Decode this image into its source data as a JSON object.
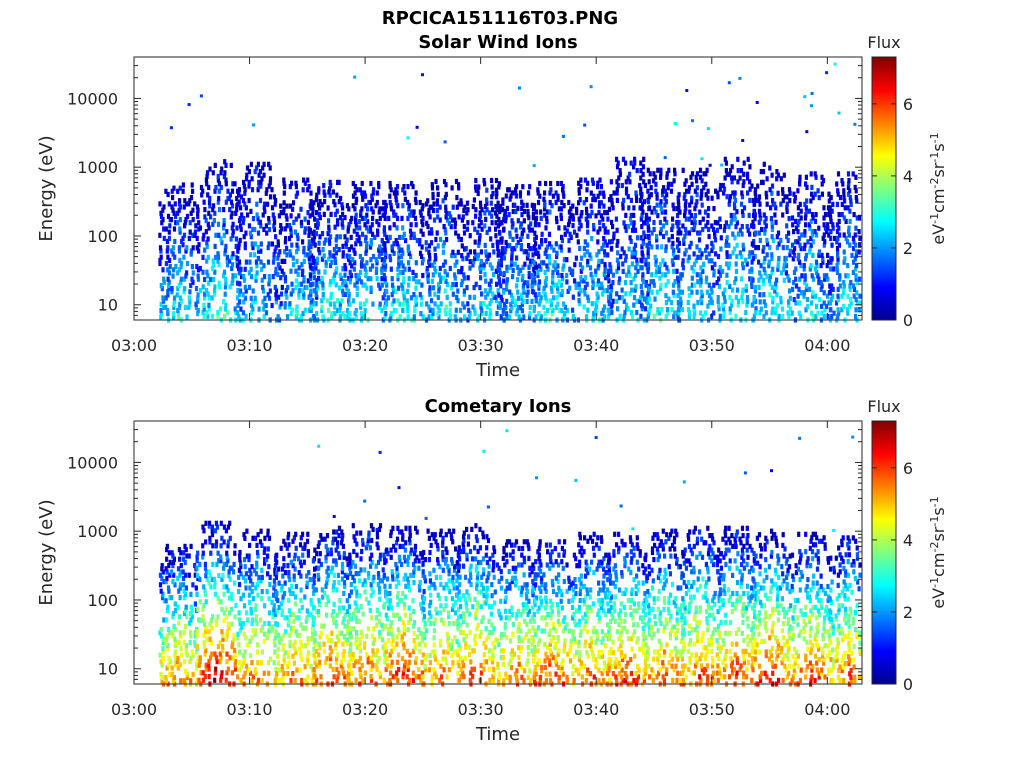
{
  "figure_title": "RPCICA151116T03.PNG",
  "chart_data": [
    {
      "type": "heatmap",
      "title": "Solar Wind Ions",
      "xlabel": "Time",
      "ylabel": "Energy (eV)",
      "x_ticks": [
        "03:00",
        "03:10",
        "03:20",
        "03:30",
        "03:40",
        "03:50",
        "04:00"
      ],
      "xlim": [
        "03:00",
        "04:03"
      ],
      "y_scale": "log",
      "y_ticks": [
        "10",
        "100",
        "1000",
        "10000"
      ],
      "ylim": [
        6,
        40000
      ],
      "colorbar": {
        "title": "Flux",
        "units": "eV-1cm-2sr-1s-1",
        "ticks": [
          "0",
          "2",
          "4",
          "6"
        ],
        "range": [
          0,
          7.3
        ],
        "colormap": "jet"
      },
      "bursts": [
        {
          "t": 3.8,
          "emax": 550,
          "peak": 2.8
        },
        {
          "t": 7.3,
          "emax": 1200,
          "peak": 3.2
        },
        {
          "t": 10.5,
          "emax": 1100,
          "peak": 2.6
        },
        {
          "t": 14.0,
          "emax": 650,
          "peak": 2.6
        },
        {
          "t": 16.8,
          "emax": 600,
          "peak": 3.0
        },
        {
          "t": 20.0,
          "emax": 580,
          "peak": 3.0
        },
        {
          "t": 23.2,
          "emax": 580,
          "peak": 3.0
        },
        {
          "t": 26.8,
          "emax": 620,
          "peak": 2.8
        },
        {
          "t": 30.3,
          "emax": 640,
          "peak": 2.6
        },
        {
          "t": 33.0,
          "emax": 520,
          "peak": 2.6
        },
        {
          "t": 36.0,
          "emax": 580,
          "peak": 3.0
        },
        {
          "t": 39.5,
          "emax": 650,
          "peak": 2.8
        },
        {
          "t": 42.8,
          "emax": 1300,
          "peak": 2.6
        },
        {
          "t": 45.5,
          "emax": 900,
          "peak": 3.0
        },
        {
          "t": 48.5,
          "emax": 900,
          "peak": 2.8
        },
        {
          "t": 52.0,
          "emax": 1300,
          "peak": 3.0
        },
        {
          "t": 55.0,
          "emax": 1100,
          "peak": 3.0
        },
        {
          "t": 58.5,
          "emax": 800,
          "peak": 2.8
        },
        {
          "t": 61.8,
          "emax": 800,
          "peak": 2.8
        }
      ]
    },
    {
      "type": "heatmap",
      "title": "Cometary Ions",
      "xlabel": "Time",
      "ylabel": "Energy (eV)",
      "x_ticks": [
        "03:00",
        "03:10",
        "03:20",
        "03:30",
        "03:40",
        "03:50",
        "04:00"
      ],
      "xlim": [
        "03:00",
        "04:03"
      ],
      "y_scale": "log",
      "y_ticks": [
        "10",
        "100",
        "1000",
        "10000"
      ],
      "ylim": [
        6,
        40000
      ],
      "colorbar": {
        "title": "Flux",
        "units": "eV-1cm-2sr-1s-1",
        "ticks": [
          "0",
          "2",
          "4",
          "6"
        ],
        "range": [
          0,
          7.3
        ],
        "colormap": "jet"
      },
      "bursts": [
        {
          "t": 3.8,
          "emax": 600,
          "peak": 5.8
        },
        {
          "t": 7.0,
          "emax": 1300,
          "peak": 7.0
        },
        {
          "t": 10.5,
          "emax": 1000,
          "peak": 5.8
        },
        {
          "t": 13.8,
          "emax": 900,
          "peak": 5.8
        },
        {
          "t": 17.0,
          "emax": 1100,
          "peak": 6.3
        },
        {
          "t": 20.0,
          "emax": 1200,
          "peak": 6.0
        },
        {
          "t": 23.2,
          "emax": 1100,
          "peak": 6.6
        },
        {
          "t": 26.5,
          "emax": 1000,
          "peak": 5.8
        },
        {
          "t": 29.5,
          "emax": 1200,
          "peak": 6.2
        },
        {
          "t": 33.0,
          "emax": 700,
          "peak": 5.8
        },
        {
          "t": 36.0,
          "emax": 700,
          "peak": 6.3
        },
        {
          "t": 39.5,
          "emax": 900,
          "peak": 6.0
        },
        {
          "t": 42.5,
          "emax": 900,
          "peak": 6.3
        },
        {
          "t": 45.8,
          "emax": 1000,
          "peak": 6.0
        },
        {
          "t": 49.0,
          "emax": 1100,
          "peak": 6.2
        },
        {
          "t": 52.0,
          "emax": 1100,
          "peak": 6.3
        },
        {
          "t": 55.0,
          "emax": 1000,
          "peak": 6.6
        },
        {
          "t": 58.5,
          "emax": 900,
          "peak": 6.3
        },
        {
          "t": 61.8,
          "emax": 800,
          "peak": 6.0
        }
      ]
    }
  ]
}
